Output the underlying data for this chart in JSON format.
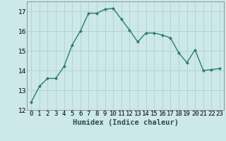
{
  "x": [
    0,
    1,
    2,
    3,
    4,
    5,
    6,
    7,
    8,
    9,
    10,
    11,
    12,
    13,
    14,
    15,
    16,
    17,
    18,
    19,
    20,
    21,
    22,
    23
  ],
  "y": [
    12.4,
    13.2,
    13.6,
    13.6,
    14.2,
    15.3,
    16.0,
    16.9,
    16.9,
    17.1,
    17.15,
    16.6,
    16.05,
    15.45,
    15.9,
    15.9,
    15.8,
    15.65,
    14.9,
    14.4,
    15.05,
    14.0,
    14.05,
    14.1
  ],
  "xlabel": "Humidex (Indice chaleur)",
  "ylim": [
    12,
    17.5
  ],
  "xlim": [
    -0.5,
    23.5
  ],
  "yticks": [
    12,
    13,
    14,
    15,
    16,
    17
  ],
  "xtick_labels": [
    "0",
    "1",
    "2",
    "3",
    "4",
    "5",
    "6",
    "7",
    "8",
    "9",
    "10",
    "11",
    "12",
    "13",
    "14",
    "15",
    "16",
    "17",
    "18",
    "19",
    "20",
    "21",
    "22",
    "23"
  ],
  "line_color": "#2d7d6e",
  "bg_color": "#cce8e8",
  "grid_color": "#b8d4d0",
  "tick_fontsize": 6.5,
  "xlabel_fontsize": 7.5
}
